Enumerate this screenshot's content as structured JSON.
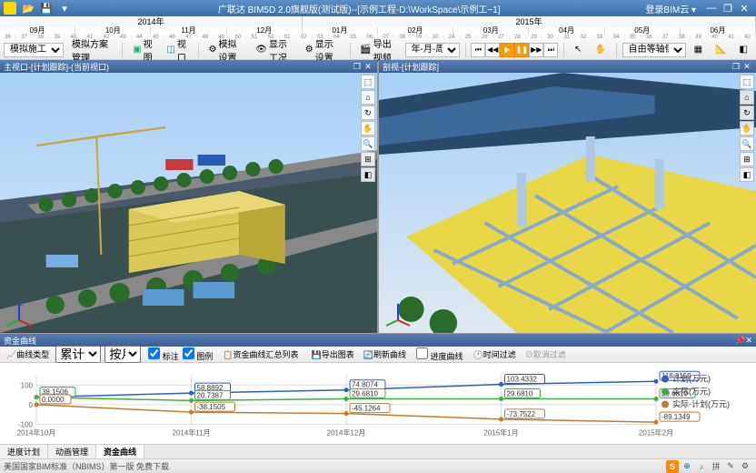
{
  "window": {
    "title": "广联达 BIM5D 2.0旗舰版(测试版)--[示例工程-D:\\WorkSpace\\示例工~1]",
    "user": "登录BIM云 ▾"
  },
  "timeline": {
    "years": [
      {
        "label": "2014年",
        "flex": 4
      },
      {
        "label": "2015年",
        "flex": 6
      }
    ],
    "months": [
      "09月",
      "10月",
      "11月",
      "12月",
      "01月",
      "02月",
      "03月",
      "04月",
      "05月",
      "06月"
    ],
    "weeks": [
      "36",
      "37",
      "38",
      "39",
      "40",
      "41",
      "42",
      "43",
      "44",
      "45",
      "46",
      "47",
      "48",
      "49",
      "50",
      "51",
      "52",
      "01",
      "02",
      "03",
      "04",
      "05",
      "06",
      "07",
      "08",
      "09",
      "10",
      "24",
      "25",
      "26",
      "27",
      "28",
      "29",
      "30",
      "31",
      "32",
      "33",
      "34",
      "35",
      "36",
      "37",
      "38",
      "39",
      "40",
      "41",
      "42"
    ]
  },
  "toolbar": {
    "mode_label": "模拟施工",
    "scheme_mgmt": "模拟方案管理",
    "view": "视图",
    "viewport": "视口",
    "sim_settings": "模拟设置",
    "show_sim": "显示工况",
    "display_settings": "显示设置",
    "export_video": "导出视频",
    "time_unit": "年-月-周",
    "camera": "自由等轴侧"
  },
  "viewports": {
    "left": {
      "title": "主视口-[计划跟踪]-(当前视口)"
    },
    "right": {
      "title": "剖视-[计划跟踪]"
    }
  },
  "chart": {
    "panel_title": "资金曲线",
    "toolbar": {
      "curve_type_label": "曲线类型",
      "curve_type": "累计值",
      "unit_label": "按月",
      "annotate": "标注",
      "legend": "图例",
      "summary": "资金曲线汇总列表",
      "export": "导出图表",
      "refresh": "刷新曲线",
      "progress_curve": "进度曲线",
      "time_filter": "时间过滤",
      "cancel_filter": "取消过滤"
    },
    "x_labels": [
      "2014年10月",
      "2014年11月",
      "2014年12月",
      "2015年1月",
      "2015年2月"
    ],
    "y_ticks": [
      -100,
      0,
      100
    ],
    "series": [
      {
        "name": "计划(万元)",
        "color": "#2e5cc7",
        "values": [
          38.1506,
          58.8892,
          74.8074,
          103.4332,
          118.8159
        ]
      },
      {
        "name": "实际(万元)",
        "color": "#3cb043",
        "values": [
          38.1506,
          20.7387,
          29.681,
          29.681,
          29.681
        ]
      },
      {
        "name": "实际-计划(万元)",
        "color": "#c77a2e",
        "values": [
          0,
          -38.1505,
          -45.1264,
          -73.7522,
          -89.1349
        ]
      }
    ],
    "background": "#ffffff",
    "grid_color": "#dddddd"
  },
  "tabs": {
    "items": [
      "进度计划",
      "动画管理",
      "资金曲线"
    ],
    "active": 2
  },
  "status": {
    "text": "美国国家BIM标准（NBIMS）第一版 免费下载"
  }
}
